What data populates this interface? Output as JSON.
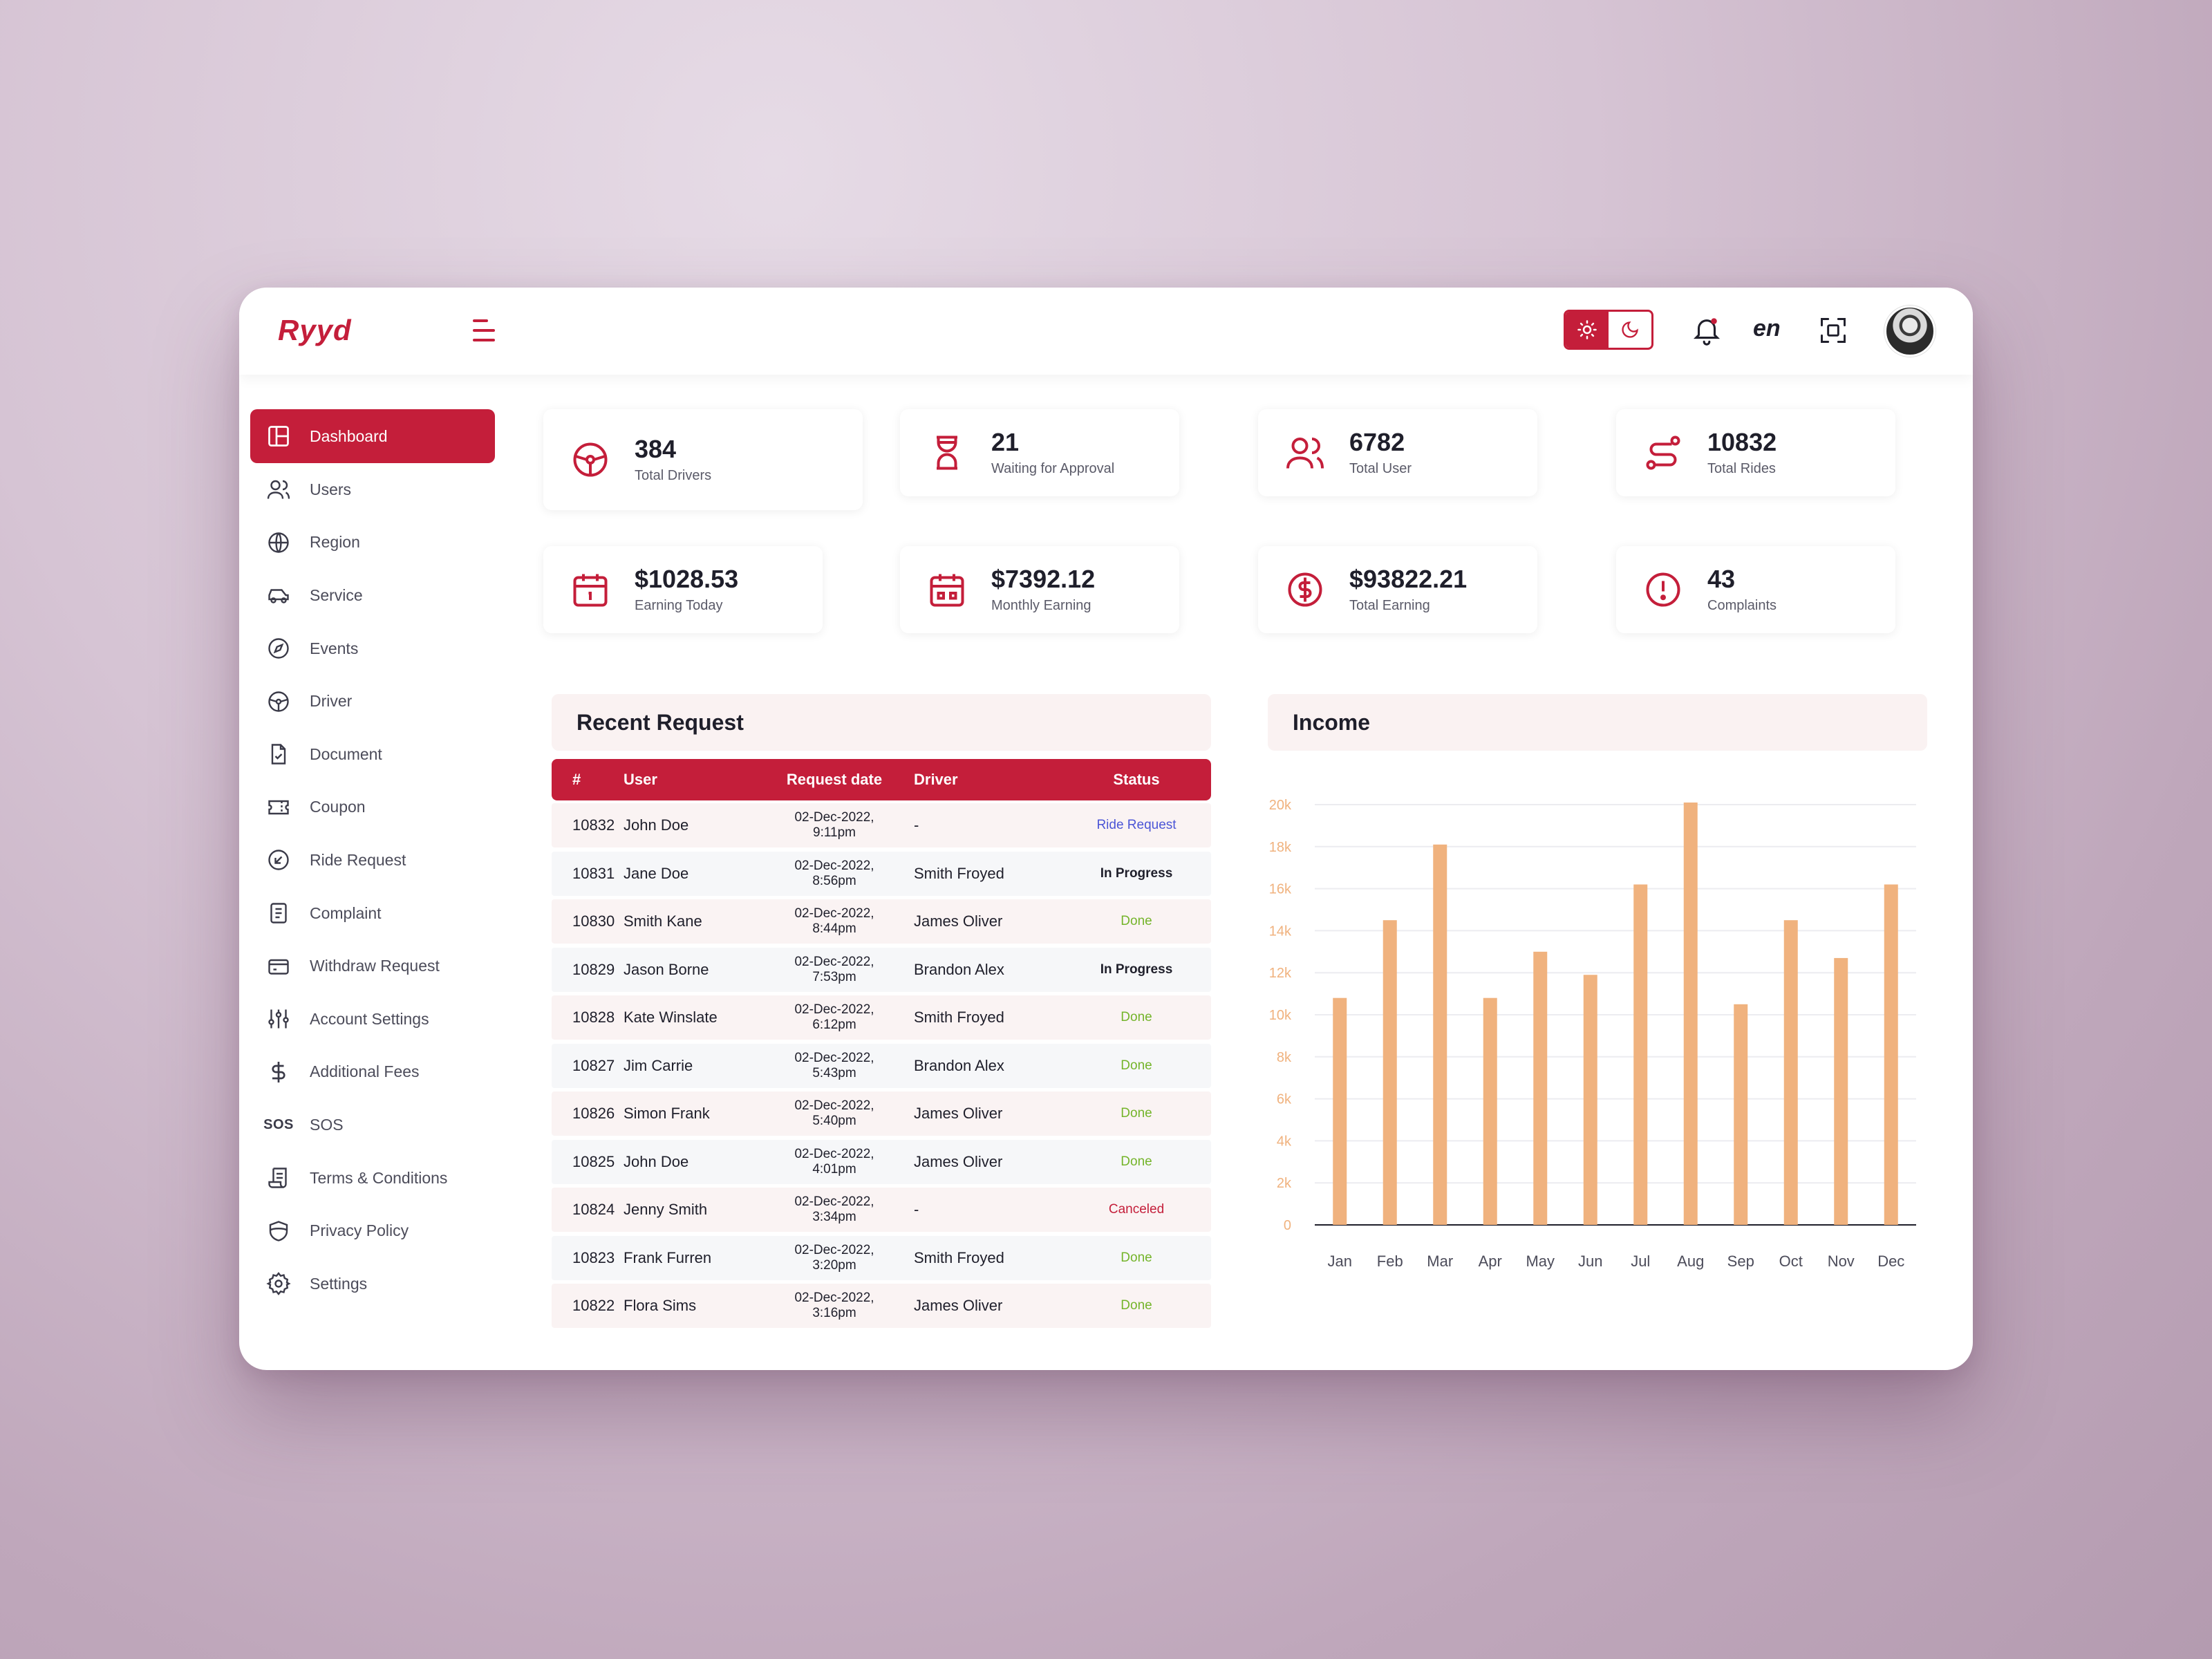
{
  "app": {
    "logo": "Ryyd",
    "lang": "en"
  },
  "colors": {
    "accent": "#c41e3a",
    "bar": "#f0b27e"
  },
  "sidebar": {
    "items": [
      {
        "label": "Dashboard",
        "icon": "dashboard-icon"
      },
      {
        "label": "Users",
        "icon": "users-icon"
      },
      {
        "label": "Region",
        "icon": "globe-icon"
      },
      {
        "label": "Service",
        "icon": "car-icon"
      },
      {
        "label": "Events",
        "icon": "compass-icon"
      },
      {
        "label": "Driver",
        "icon": "steering-wheel-icon"
      },
      {
        "label": "Document",
        "icon": "document-icon"
      },
      {
        "label": "Coupon",
        "icon": "coupon-icon"
      },
      {
        "label": "Ride Request",
        "icon": "arrow-down-left-icon"
      },
      {
        "label": "Complaint",
        "icon": "complaint-icon"
      },
      {
        "label": "Withdraw Request",
        "icon": "wallet-icon"
      },
      {
        "label": "Account Settings",
        "icon": "sliders-icon"
      },
      {
        "label": "Additional Fees",
        "icon": "dollar-icon"
      },
      {
        "label": "SOS",
        "icon": "sos-icon",
        "icon_text": "SOS"
      },
      {
        "label": "Terms & Conditions",
        "icon": "scroll-icon"
      },
      {
        "label": "Privacy Policy",
        "icon": "shield-icon"
      },
      {
        "label": "Settings",
        "icon": "gear-icon"
      }
    ]
  },
  "stats": [
    {
      "value": "384",
      "label": "Total Drivers",
      "icon": "steering-wheel-icon"
    },
    {
      "value": "21",
      "label": "Waiting for Approval",
      "icon": "hourglass-icon"
    },
    {
      "value": "6782",
      "label": "Total User",
      "icon": "users-icon"
    },
    {
      "value": "10832",
      "label": "Total Rides",
      "icon": "route-icon"
    },
    {
      "value": "$1028.53",
      "label": "Earning Today",
      "icon": "calendar-day-icon"
    },
    {
      "value": "$7392.12",
      "label": "Monthly Earning",
      "icon": "calendar-icon"
    },
    {
      "value": "$93822.21",
      "label": "Total Earning",
      "icon": "dollar-circle-icon"
    },
    {
      "value": "43",
      "label": "Complaints",
      "icon": "alert-circle-icon"
    }
  ],
  "recent": {
    "title": "Recent Request",
    "headers": [
      "#",
      "User",
      "Request date",
      "Driver",
      "Status"
    ],
    "rows": [
      {
        "id": "10832",
        "user": "John Doe",
        "date": "02-Dec-2022, 9:11pm",
        "driver": "-",
        "status": "Ride Request",
        "kind": "ride"
      },
      {
        "id": "10831",
        "user": "Jane Doe",
        "date": "02-Dec-2022, 8:56pm",
        "driver": "Smith Froyed",
        "status": "In Progress",
        "kind": "prog"
      },
      {
        "id": "10830",
        "user": "Smith Kane",
        "date": "02-Dec-2022, 8:44pm",
        "driver": "James Oliver",
        "status": "Done",
        "kind": "done"
      },
      {
        "id": "10829",
        "user": "Jason Borne",
        "date": "02-Dec-2022, 7:53pm",
        "driver": "Brandon Alex",
        "status": "In Progress",
        "kind": "prog"
      },
      {
        "id": "10828",
        "user": "Kate Winslate",
        "date": "02-Dec-2022, 6:12pm",
        "driver": "Smith Froyed",
        "status": "Done",
        "kind": "done"
      },
      {
        "id": "10827",
        "user": "Jim Carrie",
        "date": "02-Dec-2022, 5:43pm",
        "driver": "Brandon Alex",
        "status": "Done",
        "kind": "done"
      },
      {
        "id": "10826",
        "user": "Simon Frank",
        "date": "02-Dec-2022, 5:40pm",
        "driver": "James Oliver",
        "status": "Done",
        "kind": "done"
      },
      {
        "id": "10825",
        "user": "John Doe",
        "date": "02-Dec-2022, 4:01pm",
        "driver": "James Oliver",
        "status": "Done",
        "kind": "done"
      },
      {
        "id": "10824",
        "user": "Jenny Smith",
        "date": "02-Dec-2022, 3:34pm",
        "driver": "-",
        "status": "Canceled",
        "kind": "cancel"
      },
      {
        "id": "10823",
        "user": "Frank Furren",
        "date": "02-Dec-2022, 3:20pm",
        "driver": "Smith Froyed",
        "status": "Done",
        "kind": "done"
      },
      {
        "id": "10822",
        "user": "Flora Sims",
        "date": "02-Dec-2022, 3:16pm",
        "driver": "James Oliver",
        "status": "Done",
        "kind": "done"
      }
    ]
  },
  "income": {
    "title": "Income"
  },
  "chart_data": {
    "type": "bar",
    "title": "Income",
    "categories": [
      "Jan",
      "Feb",
      "Mar",
      "Apr",
      "May",
      "Jun",
      "Jul",
      "Aug",
      "Sep",
      "Oct",
      "Nov",
      "Dec"
    ],
    "values": [
      10800,
      14500,
      18100,
      10800,
      13000,
      11900,
      16200,
      20100,
      10500,
      14500,
      12700,
      16200
    ],
    "ylim": [
      0,
      20000
    ],
    "yticks": [
      "0",
      "2k",
      "4k",
      "6k",
      "8k",
      "10k",
      "12k",
      "14k",
      "16k",
      "18k",
      "20k"
    ],
    "grid": true,
    "xlabel": "",
    "ylabel": ""
  }
}
